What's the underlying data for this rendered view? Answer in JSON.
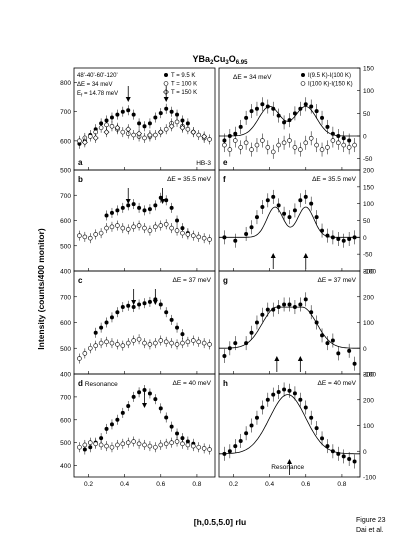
{
  "figure": {
    "title_base": "YBa",
    "title_sub1": "2",
    "title_mid": "Cu",
    "title_sub2": "3",
    "title_end": "O",
    "title_sub3": "6.95",
    "ylabel": "Intensity (counts/400 monitor)",
    "xlabel": "[h,0.5,5.0] rlu",
    "caption_line1": "Figure 23",
    "caption_line2": "Dai et al."
  },
  "chart_data": {
    "type": "scatter",
    "x_ticks": [
      0.2,
      0.4,
      0.6,
      0.8
    ],
    "xlim": [
      0.12,
      0.9
    ],
    "panels": [
      {
        "id": "a",
        "label": "a",
        "side": "left",
        "row": 0,
        "energy_label": "ΔE = 34 meV",
        "ylim": [
          500,
          850
        ],
        "y_ticks": [
          500,
          600,
          700,
          800
        ],
        "notes": [
          "48'-40'-60'-120'",
          "ΔE = 34 meV",
          "E",
          "f",
          " = 14.78 meV",
          "HB-3"
        ],
        "arrows_down": [
          0.42,
          0.63
        ],
        "legend": [
          "T = 9.5 K",
          "T = 100 K",
          "T = 150 K"
        ],
        "series": [
          {
            "name": "T = 9.5 K",
            "marker": "filled-circle",
            "x": [
              0.15,
              0.18,
              0.21,
              0.24,
              0.27,
              0.3,
              0.33,
              0.36,
              0.39,
              0.42,
              0.45,
              0.48,
              0.51,
              0.54,
              0.57,
              0.6,
              0.63,
              0.66,
              0.69,
              0.72,
              0.75
            ],
            "y": [
              590,
              600,
              620,
              640,
              660,
              670,
              680,
              690,
              700,
              705,
              690,
              660,
              650,
              660,
              680,
              695,
              710,
              700,
              690,
              670,
              660
            ]
          },
          {
            "name": "T = 100 K",
            "marker": "open-circle",
            "x": [
              0.15,
              0.18,
              0.21,
              0.24,
              0.27,
              0.3,
              0.33,
              0.36,
              0.39,
              0.42,
              0.45,
              0.48,
              0.51,
              0.54,
              0.57,
              0.6,
              0.63,
              0.66,
              0.69,
              0.72,
              0.75,
              0.78,
              0.81,
              0.84,
              0.87
            ],
            "y": [
              600,
              610,
              615,
              630,
              645,
              655,
              650,
              640,
              630,
              625,
              620,
              615,
              610,
              615,
              620,
              630,
              640,
              660,
              665,
              650,
              640,
              630,
              620,
              610,
              605
            ]
          },
          {
            "name": "T = 150 K",
            "marker": "open-diamond",
            "x": [
              0.18,
              0.24,
              0.3,
              0.36,
              0.42,
              0.48,
              0.54,
              0.6,
              0.66,
              0.72,
              0.78,
              0.84
            ],
            "y": [
              595,
              610,
              630,
              645,
              640,
              625,
              620,
              630,
              650,
              645,
              630,
              615
            ]
          }
        ]
      },
      {
        "id": "b",
        "label": "b",
        "side": "left",
        "row": 1,
        "energy_label": "ΔE = 35.5 meV",
        "ylim": [
          400,
          800
        ],
        "y_ticks": [
          400,
          500,
          600,
          700
        ],
        "arrows_down": [
          0.42,
          0.61
        ],
        "series": [
          {
            "name": "low T",
            "marker": "filled-circle",
            "x": [
              0.3,
              0.33,
              0.36,
              0.39,
              0.42,
              0.45,
              0.48,
              0.51,
              0.54,
              0.57,
              0.6,
              0.63,
              0.66,
              0.69,
              0.72,
              0.75
            ],
            "y": [
              620,
              630,
              640,
              650,
              660,
              665,
              650,
              640,
              645,
              660,
              690,
              680,
              650,
              600,
              570,
              550
            ]
          },
          {
            "name": "high T",
            "marker": "open-circle",
            "x": [
              0.15,
              0.18,
              0.21,
              0.24,
              0.27,
              0.3,
              0.33,
              0.36,
              0.39,
              0.42,
              0.45,
              0.48,
              0.51,
              0.54,
              0.57,
              0.6,
              0.63,
              0.66,
              0.69,
              0.72,
              0.75,
              0.78,
              0.81,
              0.84,
              0.87
            ],
            "y": [
              540,
              535,
              530,
              545,
              550,
              570,
              575,
              580,
              570,
              565,
              575,
              580,
              570,
              560,
              575,
              580,
              585,
              570,
              560,
              550,
              545,
              540,
              535,
              530,
              525
            ]
          }
        ]
      },
      {
        "id": "c",
        "label": "c",
        "side": "left",
        "row": 2,
        "energy_label": "ΔE = 37 meV",
        "ylim": [
          400,
          800
        ],
        "y_ticks": [
          400,
          500,
          600,
          700
        ],
        "arrows_down": [
          0.45,
          0.57
        ],
        "series": [
          {
            "name": "low T",
            "marker": "filled-circle",
            "x": [
              0.24,
              0.27,
              0.3,
              0.33,
              0.36,
              0.39,
              0.42,
              0.45,
              0.48,
              0.51,
              0.54,
              0.57,
              0.6,
              0.63,
              0.66,
              0.69,
              0.72
            ],
            "y": [
              560,
              580,
              600,
              620,
              640,
              660,
              665,
              660,
              670,
              675,
              680,
              690,
              670,
              640,
              610,
              580,
              555
            ]
          },
          {
            "name": "high T",
            "marker": "open-circle",
            "x": [
              0.15,
              0.18,
              0.21,
              0.24,
              0.27,
              0.3,
              0.33,
              0.36,
              0.39,
              0.42,
              0.45,
              0.48,
              0.51,
              0.54,
              0.57,
              0.6,
              0.63,
              0.66,
              0.69,
              0.72,
              0.75,
              0.78,
              0.81,
              0.84,
              0.87
            ],
            "y": [
              460,
              480,
              500,
              510,
              520,
              525,
              520,
              515,
              510,
              520,
              530,
              535,
              520,
              515,
              520,
              530,
              525,
              520,
              515,
              520,
              525,
              530,
              525,
              520,
              515
            ]
          }
        ]
      },
      {
        "id": "d",
        "label": "d",
        "side": "left",
        "row": 3,
        "energy_label": "ΔE = 40 meV",
        "ylim": [
          350,
          800
        ],
        "y_ticks": [
          400,
          500,
          600,
          700
        ],
        "arrows_down": [
          0.51
        ],
        "resonance_label": "Resonance",
        "series": [
          {
            "name": "low T",
            "marker": "filled-circle",
            "x": [
              0.18,
              0.21,
              0.24,
              0.27,
              0.3,
              0.33,
              0.36,
              0.39,
              0.42,
              0.45,
              0.48,
              0.51,
              0.54,
              0.57,
              0.6,
              0.63,
              0.66,
              0.69,
              0.72,
              0.75,
              0.78
            ],
            "y": [
              470,
              480,
              500,
              520,
              560,
              580,
              600,
              630,
              660,
              700,
              720,
              730,
              715,
              690,
              650,
              610,
              570,
              540,
              520,
              505,
              495
            ]
          },
          {
            "name": "high T",
            "marker": "open-circle",
            "x": [
              0.15,
              0.18,
              0.21,
              0.24,
              0.27,
              0.3,
              0.33,
              0.36,
              0.39,
              0.42,
              0.45,
              0.48,
              0.51,
              0.54,
              0.57,
              0.6,
              0.63,
              0.66,
              0.69,
              0.72,
              0.75,
              0.78,
              0.81,
              0.84,
              0.87
            ],
            "y": [
              480,
              490,
              500,
              495,
              490,
              485,
              480,
              490,
              495,
              500,
              505,
              495,
              490,
              485,
              480,
              490,
              495,
              500,
              505,
              495,
              490,
              485,
              480,
              475,
              470
            ]
          }
        ]
      },
      {
        "id": "e",
        "label": "e",
        "side": "right",
        "row": 0,
        "energy_label": "ΔE = 34 meV",
        "ylim": [
          -75,
          150
        ],
        "y_ticks": [
          -50,
          0,
          50,
          100,
          150
        ],
        "legend": [
          "I(9.5 K)-I(100 K)",
          "I(100 K)-I(150 K)"
        ],
        "fit": {
          "type": "double-gaussian",
          "centers": [
            0.4,
            0.6
          ],
          "amplitude": 65,
          "sigma": 0.06,
          "baseline": 0
        },
        "series": [
          {
            "name": "I(9.5 K)-I(100 K)",
            "marker": "filled-circle",
            "x": [
              0.15,
              0.18,
              0.21,
              0.24,
              0.27,
              0.3,
              0.33,
              0.36,
              0.39,
              0.42,
              0.45,
              0.48,
              0.51,
              0.54,
              0.57,
              0.6,
              0.63,
              0.66,
              0.69,
              0.72,
              0.75,
              0.78,
              0.81,
              0.84
            ],
            "y": [
              -10,
              0,
              5,
              20,
              40,
              55,
              60,
              70,
              65,
              60,
              45,
              30,
              35,
              50,
              60,
              70,
              65,
              55,
              40,
              20,
              5,
              0,
              -5,
              -10
            ]
          },
          {
            "name": "I(100 K)-I(150 K)",
            "marker": "open-circle",
            "x": [
              0.15,
              0.18,
              0.21,
              0.24,
              0.27,
              0.3,
              0.33,
              0.36,
              0.39,
              0.42,
              0.45,
              0.48,
              0.51,
              0.54,
              0.57,
              0.6,
              0.63,
              0.66,
              0.69,
              0.72,
              0.75,
              0.78,
              0.81,
              0.84,
              0.87
            ],
            "y": [
              -20,
              -30,
              -10,
              -25,
              -15,
              -30,
              -20,
              -10,
              -25,
              -35,
              -20,
              -15,
              -10,
              -25,
              -30,
              -15,
              -5,
              -20,
              -30,
              -25,
              -10,
              -15,
              -20,
              -25,
              -20
            ]
          }
        ]
      },
      {
        "id": "f",
        "label": "f",
        "side": "right",
        "row": 1,
        "energy_label": "ΔE = 35.5 meV",
        "ylim": [
          -100,
          200
        ],
        "y_ticks": [
          -100,
          -50,
          0,
          50,
          100,
          150,
          200
        ],
        "arrows_up": [
          0.42,
          0.6
        ],
        "fit": {
          "type": "double-gaussian",
          "centers": [
            0.43,
            0.6
          ],
          "amplitude": 90,
          "sigma": 0.045,
          "baseline": 0
        },
        "series": [
          {
            "name": "difference",
            "marker": "filled-circle",
            "x": [
              0.15,
              0.21,
              0.27,
              0.3,
              0.33,
              0.36,
              0.39,
              0.42,
              0.45,
              0.48,
              0.51,
              0.54,
              0.57,
              0.6,
              0.63,
              0.66,
              0.69,
              0.72,
              0.75,
              0.78,
              0.81,
              0.84,
              0.87
            ],
            "y": [
              0,
              -10,
              10,
              30,
              60,
              90,
              110,
              120,
              95,
              70,
              60,
              80,
              110,
              120,
              100,
              60,
              20,
              5,
              0,
              -5,
              -10,
              -5,
              0
            ]
          }
        ]
      },
      {
        "id": "g",
        "label": "g",
        "side": "right",
        "row": 2,
        "energy_label": "ΔE = 37 meV",
        "ylim": [
          -100,
          300
        ],
        "y_ticks": [
          -100,
          0,
          100,
          200,
          300
        ],
        "arrows_up": [
          0.44,
          0.57
        ],
        "fit": {
          "type": "broad-peak",
          "centers": [
            0.44,
            0.58
          ],
          "amplitude": 160,
          "sigma": 0.08,
          "baseline": 0
        },
        "series": [
          {
            "name": "difference",
            "marker": "filled-circle",
            "x": [
              0.15,
              0.18,
              0.21,
              0.27,
              0.3,
              0.33,
              0.36,
              0.39,
              0.42,
              0.45,
              0.48,
              0.51,
              0.54,
              0.57,
              0.6,
              0.63,
              0.66,
              0.69,
              0.72,
              0.75,
              0.78,
              0.84,
              0.87
            ],
            "y": [
              -30,
              0,
              20,
              20,
              60,
              100,
              130,
              150,
              150,
              160,
              170,
              170,
              160,
              170,
              190,
              140,
              100,
              50,
              20,
              30,
              -20,
              -10,
              -60
            ]
          }
        ]
      },
      {
        "id": "h",
        "label": "h",
        "side": "right",
        "row": 3,
        "energy_label": "ΔE = 40 meV",
        "ylim": [
          -100,
          300
        ],
        "y_ticks": [
          -100,
          0,
          100,
          200,
          300
        ],
        "arrows_up": [
          0.51
        ],
        "resonance_label": "Resonance",
        "fit": {
          "type": "gaussian",
          "centers": [
            0.5
          ],
          "amplitude": 230,
          "sigma": 0.1,
          "baseline": -10
        },
        "series": [
          {
            "name": "difference",
            "marker": "filled-circle",
            "x": [
              0.15,
              0.18,
              0.21,
              0.24,
              0.27,
              0.3,
              0.33,
              0.36,
              0.39,
              0.42,
              0.45,
              0.48,
              0.51,
              0.54,
              0.57,
              0.6,
              0.63,
              0.66,
              0.69,
              0.72,
              0.75,
              0.78,
              0.81,
              0.84,
              0.87
            ],
            "y": [
              -10,
              0,
              20,
              40,
              70,
              100,
              130,
              170,
              200,
              220,
              230,
              240,
              235,
              225,
              200,
              170,
              130,
              90,
              50,
              20,
              0,
              -10,
              -20,
              -30,
              -40
            ]
          }
        ]
      }
    ]
  }
}
